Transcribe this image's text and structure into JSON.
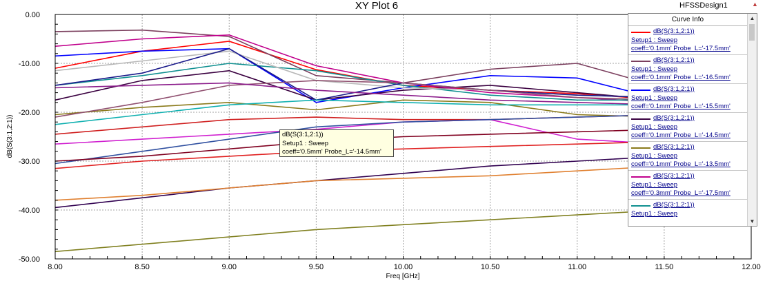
{
  "design_name": "HFSSDesign1",
  "chart_data": {
    "type": "line",
    "title": "XY Plot 6",
    "xlabel": "Freq [GHz]",
    "ylabel": "dB(S(3:1,2:1))",
    "xlim": [
      8.0,
      12.0
    ],
    "ylim": [
      -50.0,
      0.0
    ],
    "xticks": [
      "8.00",
      "8.50",
      "9.00",
      "9.50",
      "10.00",
      "10.50",
      "11.00",
      "11.50",
      "12.00"
    ],
    "yticks": [
      "0.00",
      "-10.00",
      "-20.00",
      "-30.00",
      "-40.00",
      "-50.00"
    ],
    "grid": true,
    "legend": "right",
    "series": [
      {
        "color": "#ff0000",
        "x": [
          8.0,
          8.5,
          9.0,
          9.5,
          10.0,
          10.5,
          11.0,
          11.5,
          12.0
        ],
        "y": [
          -11.0,
          -7.5,
          -5.5,
          -11.3,
          -14.5,
          -15.5,
          -16.2,
          -17.5,
          -18.0
        ]
      },
      {
        "color": "#7b3f5e",
        "x": [
          8.0,
          8.5,
          9.0,
          9.5,
          10.0,
          10.5,
          11.0,
          11.5,
          12.0
        ],
        "y": [
          -3.5,
          -3.2,
          -4.5,
          -12.5,
          -14.0,
          -11.2,
          -10.0,
          -15.0,
          -16.0
        ]
      },
      {
        "color": "#0000ff",
        "x": [
          8.0,
          8.5,
          9.0,
          9.5,
          10.0,
          10.5,
          11.0,
          11.5,
          12.0
        ],
        "y": [
          -8.5,
          -7.5,
          -7.0,
          -18.0,
          -15.0,
          -12.5,
          -13.0,
          -17.5,
          -18.0
        ]
      },
      {
        "color": "#3a0040",
        "x": [
          8.0,
          8.5,
          9.0,
          9.5,
          10.0,
          10.5,
          11.0,
          11.5,
          12.0
        ],
        "y": [
          -17.5,
          -13.5,
          -11.5,
          -17.5,
          -15.5,
          -14.5,
          -16.0,
          -17.5,
          -18.0
        ]
      },
      {
        "color": "#8a7a1a",
        "x": [
          8.0,
          8.5,
          9.0,
          9.5,
          10.0,
          10.5,
          11.0,
          11.5,
          12.0
        ],
        "y": [
          -20.5,
          -19.0,
          -18.0,
          -19.5,
          -17.5,
          -18.0,
          -20.5,
          -21.0,
          -22.0
        ]
      },
      {
        "color": "#c0008c",
        "x": [
          8.0,
          8.5,
          9.0,
          9.5,
          10.0,
          10.5,
          11.0,
          11.5,
          12.0
        ],
        "y": [
          -6.5,
          -5.0,
          -4.2,
          -10.5,
          -14.0,
          -16.0,
          -17.0,
          -18.0,
          -18.5
        ]
      },
      {
        "color": "#109090",
        "x": [
          8.0,
          8.5,
          9.0,
          9.5,
          10.0,
          10.5,
          11.0,
          11.5,
          12.0
        ],
        "y": [
          -14.5,
          -12.5,
          -10.0,
          -11.5,
          -14.5,
          -16.5,
          -17.5,
          -17.5,
          -18.0
        ]
      },
      {
        "color": "#b8b8b8",
        "x": [
          8.0,
          8.5,
          9.0,
          9.5,
          10.0,
          10.5,
          11.0,
          11.5,
          12.0
        ],
        "y": [
          -11.5,
          -9.5,
          -7.5,
          -13.5,
          -15.0,
          -15.5,
          -16.5,
          -17.0,
          -17.5
        ]
      },
      {
        "color": "#1a1a8a",
        "x": [
          8.0,
          8.5,
          9.0,
          9.5,
          10.0,
          10.5,
          11.0,
          11.5,
          12.0
        ],
        "y": [
          -14.5,
          -12.0,
          -7.0,
          -17.5,
          -14.0,
          -15.5,
          -16.5,
          -17.0,
          -17.5
        ]
      },
      {
        "color": "#905070",
        "x": [
          8.0,
          8.5,
          9.0,
          9.5,
          10.0,
          10.5,
          11.0,
          11.5,
          12.0
        ],
        "y": [
          -21.0,
          -18.0,
          -14.5,
          -13.5,
          -14.0,
          -15.5,
          -17.0,
          -17.5,
          -18.0
        ]
      },
      {
        "color": "#8a1a8a",
        "x": [
          8.0,
          8.5,
          9.0,
          9.5,
          10.0,
          10.5,
          11.0,
          11.5,
          12.0
        ],
        "y": [
          -15.0,
          -14.5,
          -14.0,
          -15.5,
          -16.5,
          -17.5,
          -18.0,
          -18.5,
          -18.5
        ]
      },
      {
        "color": "#10b0b0",
        "x": [
          8.0,
          8.5,
          9.0,
          9.5,
          10.0,
          10.5,
          11.0,
          11.5,
          12.0
        ],
        "y": [
          -22.5,
          -20.5,
          -18.5,
          -17.5,
          -18.0,
          -18.5,
          -18.5,
          -18.5,
          -18.5
        ]
      },
      {
        "color": "#d02020",
        "x": [
          8.0,
          8.5,
          9.0,
          9.5,
          10.0,
          10.5,
          11.0,
          11.5,
          12.0
        ],
        "y": [
          -24.5,
          -23.0,
          -21.5,
          -21.0,
          -21.5,
          -21.5,
          -21.0,
          -20.5,
          -20.0
        ]
      },
      {
        "color": "#d020d0",
        "x": [
          8.0,
          8.5,
          9.0,
          9.5,
          10.0,
          10.5,
          11.0,
          11.5,
          12.0
        ],
        "y": [
          -26.5,
          -25.5,
          -24.5,
          -23.5,
          -22.0,
          -21.5,
          -25.5,
          -26.5,
          -27.0
        ]
      },
      {
        "color": "#3050a0",
        "x": [
          8.0,
          8.5,
          9.0,
          9.5,
          10.0,
          10.5,
          11.0,
          11.5,
          12.0
        ],
        "y": [
          -30.5,
          -28.0,
          -25.5,
          -23.0,
          -22.0,
          -21.5,
          -21.0,
          -20.5,
          -20.0
        ]
      },
      {
        "color": "#800020",
        "x": [
          8.0,
          8.5,
          9.0,
          9.5,
          10.0,
          10.5,
          11.0,
          11.5,
          12.0
        ],
        "y": [
          -30.0,
          -29.0,
          -27.5,
          -26.0,
          -25.0,
          -24.5,
          -24.0,
          -23.5,
          -23.0
        ]
      },
      {
        "color": "#e02020",
        "x": [
          8.0,
          8.5,
          9.0,
          9.5,
          10.0,
          10.5,
          11.0,
          11.5,
          12.0
        ],
        "y": [
          -31.5,
          -30.0,
          -29.0,
          -28.0,
          -27.5,
          -27.0,
          -26.5,
          -26.0,
          -25.5
        ]
      },
      {
        "color": "#300050",
        "x": [
          8.0,
          8.5,
          9.0,
          9.5,
          10.0,
          10.5,
          11.0,
          11.5,
          12.0
        ],
        "y": [
          -39.5,
          -37.5,
          -35.5,
          -34.0,
          -32.5,
          -31.0,
          -30.0,
          -29.0,
          -28.0
        ]
      },
      {
        "color": "#e08030",
        "x": [
          8.0,
          8.5,
          9.0,
          9.5,
          10.0,
          10.5,
          11.0,
          11.5,
          12.0
        ],
        "y": [
          -38.0,
          -37.0,
          -35.5,
          -34.0,
          -33.5,
          -33.0,
          -32.0,
          -31.0,
          -30.0
        ]
      },
      {
        "color": "#808020",
        "x": [
          8.0,
          8.5,
          9.0,
          9.5,
          10.0,
          10.5,
          11.0,
          11.5,
          12.0
        ],
        "y": [
          -48.5,
          -47.0,
          -45.5,
          -44.0,
          -43.0,
          -42.0,
          -41.0,
          -40.0,
          -39.0
        ]
      }
    ]
  },
  "legend": {
    "header": "Curve Info",
    "entries": [
      {
        "color": "#ff0000",
        "line1": "dB(S(3:1,2:1))",
        "line2": "Setup1 : Sweep",
        "line3": "coeff='0.1mm' Probe_L='-17.5mm'"
      },
      {
        "color": "#7b3f5e",
        "line1": "dB(S(3:1,2:1))",
        "line2": "Setup1 : Sweep",
        "line3": "coeff='0.1mm' Probe_L='-16.5mm'"
      },
      {
        "color": "#0000ff",
        "line1": "dB(S(3:1,2:1))",
        "line2": "Setup1 : Sweep",
        "line3": "coeff='0.1mm' Probe_L='-15.5mm'"
      },
      {
        "color": "#3a0040",
        "line1": "dB(S(3:1,2:1))",
        "line2": "Setup1 : Sweep",
        "line3": "coeff='0.1mm' Probe_L='-14.5mm'"
      },
      {
        "color": "#8a7a1a",
        "line1": "dB(S(3:1,2:1))",
        "line2": "Setup1 : Sweep",
        "line3": "coeff='0.1mm' Probe_L='-13.5mm'"
      },
      {
        "color": "#c0008c",
        "line1": "dB(S(3:1,2:1))",
        "line2": "Setup1 : Sweep",
        "line3": "coeff='0.3mm' Probe_L='-17.5mm'"
      },
      {
        "color": "#109090",
        "line1": "dB(S(3:1,2:1))",
        "line2": "Setup1 : Sweep",
        "line3": ""
      }
    ]
  },
  "tooltip": {
    "line1": "dB(S(3:1,2:1))",
    "line2": "Setup1 : Sweep",
    "line3": "coeff='0.5mm' Probe_L='-14.5mm'"
  }
}
